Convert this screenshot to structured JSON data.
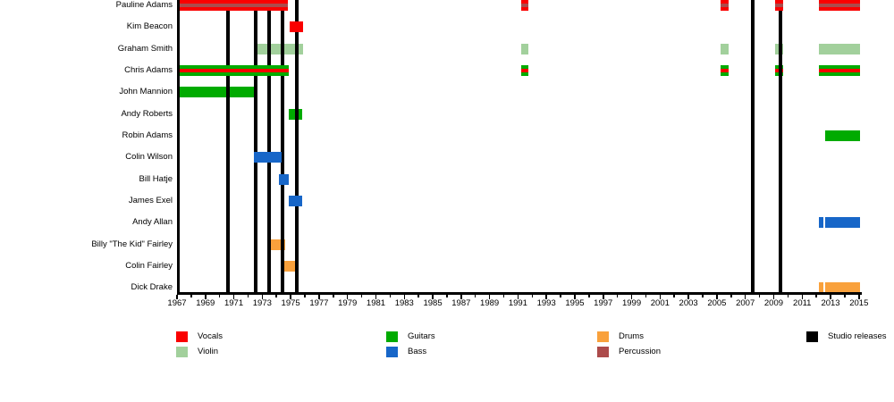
{
  "chart_data": {
    "type": "bar",
    "variant": "band-member-timeline-gantt",
    "title": "",
    "x_axis": {
      "min": 1967,
      "max": 2015.2,
      "tick_step": 1,
      "label_step": 2,
      "tick_labels": [
        "1967",
        "1969",
        "1971",
        "1973",
        "1975",
        "1977",
        "1979",
        "1981",
        "1983",
        "1985",
        "1987",
        "1989",
        "1991",
        "1993",
        "1995",
        "1997",
        "1999",
        "2001",
        "2003",
        "2005",
        "2007",
        "2009",
        "2011",
        "2013",
        "2015"
      ]
    },
    "grid": false,
    "colors": {
      "vocals": "#fa0000",
      "guitars": "#00ab00",
      "violin": "#a2d09c",
      "bass": "#1766c8",
      "drums": "#f9a13c",
      "percussion": "#ac4b4b",
      "releases": "#000000"
    },
    "release_lines": {
      "label": "Studio releases",
      "years": [
        1970.6,
        1972.55,
        1973.5,
        1974.45,
        1975.45,
        2007.5,
        2009.45
      ]
    },
    "members": [
      {
        "name": "Pauline Adams",
        "roles": [
          "Vocals",
          "Percussion"
        ],
        "base": "vocals",
        "stripe": "percussion",
        "segments": [
          {
            "from": 1967.0,
            "to": 1974.8,
            "above_lines": true
          },
          {
            "from": 1991.2,
            "to": 1991.75
          },
          {
            "from": 2005.25,
            "to": 2005.8
          },
          {
            "from": 2009.1,
            "to": 2009.65,
            "above_lines": true
          },
          {
            "from": 2012.2,
            "to": 2015.05
          }
        ]
      },
      {
        "name": "Kim Beacon",
        "roles": [
          "Vocals"
        ],
        "base": "vocals",
        "segments": [
          {
            "from": 1974.9,
            "to": 1975.85,
            "above_lines": true
          }
        ]
      },
      {
        "name": "Graham Smith",
        "roles": [
          "Violin"
        ],
        "base": "violin",
        "segments": [
          {
            "from": 1972.4,
            "to": 1975.9
          },
          {
            "from": 1991.2,
            "to": 1991.75
          },
          {
            "from": 2005.25,
            "to": 2005.8
          },
          {
            "from": 2009.1,
            "to": 2009.65
          },
          {
            "from": 2012.2,
            "to": 2015.05
          }
        ]
      },
      {
        "name": "Chris  Adams",
        "roles": [
          "Guitars",
          "Vocals"
        ],
        "base": "guitars",
        "stripe": "vocals",
        "segments": [
          {
            "from": 1967.0,
            "to": 1974.85,
            "above_lines": true
          },
          {
            "from": 1991.2,
            "to": 1991.75
          },
          {
            "from": 2005.25,
            "to": 2005.8
          },
          {
            "from": 2009.1,
            "to": 2009.65
          },
          {
            "from": 2012.2,
            "to": 2015.05
          }
        ]
      },
      {
        "name": "John Mannion",
        "roles": [
          "Guitars"
        ],
        "base": "guitars",
        "segments": [
          {
            "from": 1967.0,
            "to": 1972.45
          }
        ]
      },
      {
        "name": "Andy Roberts",
        "roles": [
          "Guitars"
        ],
        "base": "guitars",
        "segments": [
          {
            "from": 1974.85,
            "to": 1975.8
          }
        ]
      },
      {
        "name": "Robin Adams",
        "roles": [
          "Guitars"
        ],
        "base": "guitars",
        "segments": [
          {
            "from": 2012.6,
            "to": 2015.05
          }
        ]
      },
      {
        "name": "Colin Wilson",
        "roles": [
          "Bass"
        ],
        "base": "bass",
        "segments": [
          {
            "from": 1972.4,
            "to": 1974.35,
            "above_lines": true
          }
        ]
      },
      {
        "name": "Bill Hatje",
        "roles": [
          "Bass"
        ],
        "base": "bass",
        "segments": [
          {
            "from": 1974.2,
            "to": 1974.85,
            "above_lines": true
          }
        ]
      },
      {
        "name": "James Exel",
        "roles": [
          "Bass"
        ],
        "base": "bass",
        "segments": [
          {
            "from": 1974.85,
            "to": 1975.8,
            "above_lines": true
          }
        ]
      },
      {
        "name": "Andy Allan",
        "roles": [
          "Bass"
        ],
        "base": "bass",
        "segments": [
          {
            "from": 2012.15,
            "to": 2012.5
          },
          {
            "from": 2012.6,
            "to": 2015.05
          }
        ]
      },
      {
        "name": "Billy \"The Kid\" Fairley",
        "roles": [
          "Drums"
        ],
        "base": "drums",
        "segments": [
          {
            "from": 1973.55,
            "to": 1974.6
          }
        ]
      },
      {
        "name": "Colin Fairley",
        "roles": [
          "Drums"
        ],
        "base": "drums",
        "segments": [
          {
            "from": 1974.5,
            "to": 1975.45
          }
        ]
      },
      {
        "name": "Dick Drake",
        "roles": [
          "Drums"
        ],
        "base": "drums",
        "segments": [
          {
            "from": 2012.15,
            "to": 2012.5
          },
          {
            "from": 2012.6,
            "to": 2015.05
          }
        ]
      }
    ],
    "legend": [
      {
        "label": "Vocals",
        "color": "vocals",
        "row": 0,
        "col": 0
      },
      {
        "label": "Violin",
        "color": "violin",
        "row": 1,
        "col": 0
      },
      {
        "label": "Guitars",
        "color": "guitars",
        "row": 0,
        "col": 1
      },
      {
        "label": "Bass",
        "color": "bass",
        "row": 1,
        "col": 1
      },
      {
        "label": "Drums",
        "color": "drums",
        "row": 0,
        "col": 2
      },
      {
        "label": "Percussion",
        "color": "percussion",
        "row": 1,
        "col": 2
      },
      {
        "label": "Studio releases",
        "color": "releases",
        "row": 0,
        "col": 3
      }
    ]
  }
}
